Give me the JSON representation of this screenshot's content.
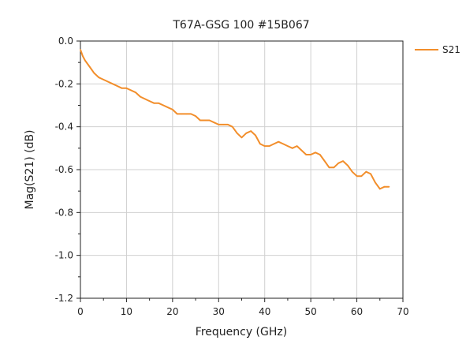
{
  "chart_data": {
    "type": "line",
    "title": "T67A-GSG 100 #15B067",
    "xlabel": "Frequency (GHz)",
    "ylabel": "Mag(S21) (dB)",
    "xlim": [
      0,
      70
    ],
    "ylim": [
      -1.2,
      0.0
    ],
    "x_ticks": [
      0,
      10,
      20,
      30,
      40,
      50,
      60,
      70
    ],
    "y_ticks": [
      0.0,
      -0.2,
      -0.4,
      -0.6,
      -0.8,
      -1.0,
      -1.2
    ],
    "x_tick_labels": [
      "0",
      "10",
      "20",
      "30",
      "40",
      "50",
      "60",
      "70"
    ],
    "y_tick_labels": [
      "0.0",
      "-0.2",
      "-0.4",
      "-0.6",
      "-0.8",
      "-1.0",
      "-1.2"
    ],
    "grid": true,
    "legend": "top-right",
    "series": [
      {
        "name": "S21",
        "color": "#F28E2B",
        "x": [
          0,
          0.5,
          1,
          2,
          3,
          4,
          5,
          6,
          7,
          8,
          9,
          10,
          11,
          12,
          13,
          14,
          15,
          16,
          17,
          18,
          19,
          20,
          21,
          22,
          23,
          24,
          25,
          26,
          27,
          28,
          29,
          30,
          31,
          32,
          33,
          34,
          35,
          36,
          37,
          38,
          39,
          40,
          41,
          42,
          43,
          44,
          45,
          46,
          47,
          48,
          49,
          50,
          51,
          52,
          53,
          54,
          55,
          56,
          57,
          58,
          59,
          60,
          61,
          62,
          63,
          64,
          65,
          66,
          67
        ],
        "y": [
          -0.04,
          -0.07,
          -0.09,
          -0.12,
          -0.15,
          -0.17,
          -0.18,
          -0.19,
          -0.2,
          -0.21,
          -0.22,
          -0.22,
          -0.23,
          -0.24,
          -0.26,
          -0.27,
          -0.28,
          -0.29,
          -0.29,
          -0.3,
          -0.31,
          -0.32,
          -0.34,
          -0.34,
          -0.34,
          -0.34,
          -0.35,
          -0.37,
          -0.37,
          -0.37,
          -0.38,
          -0.39,
          -0.39,
          -0.39,
          -0.4,
          -0.43,
          -0.45,
          -0.43,
          -0.42,
          -0.44,
          -0.48,
          -0.49,
          -0.49,
          -0.48,
          -0.47,
          -0.48,
          -0.49,
          -0.5,
          -0.49,
          -0.51,
          -0.53,
          -0.53,
          -0.52,
          -0.53,
          -0.56,
          -0.59,
          -0.59,
          -0.57,
          -0.56,
          -0.58,
          -0.61,
          -0.63,
          -0.63,
          -0.61,
          -0.62,
          -0.66,
          -0.69,
          -0.68,
          -0.68
        ]
      }
    ]
  }
}
